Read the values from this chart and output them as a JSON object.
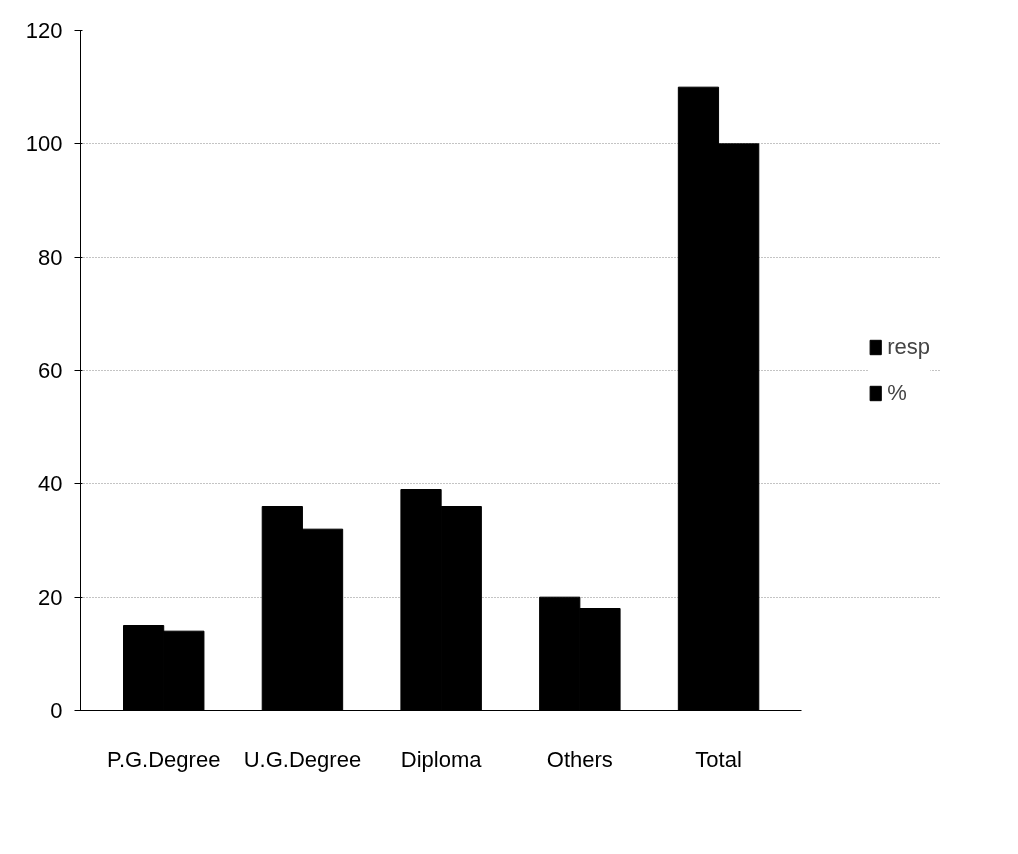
{
  "chart_data": {
    "type": "bar",
    "categories": [
      "P.G.Degree",
      "U.G.Degree",
      "Diploma",
      "Others",
      "Total"
    ],
    "series": [
      {
        "name": "resp",
        "color": "#000000",
        "values": [
          15,
          36,
          39,
          20,
          110
        ]
      },
      {
        "name": "%",
        "color": "#000000",
        "values": [
          14,
          32,
          36,
          18,
          100
        ]
      }
    ],
    "ylim": [
      0,
      120
    ],
    "yticks": [
      0,
      20,
      40,
      60,
      80,
      100,
      120
    ],
    "grid": "y",
    "legend": "right"
  }
}
